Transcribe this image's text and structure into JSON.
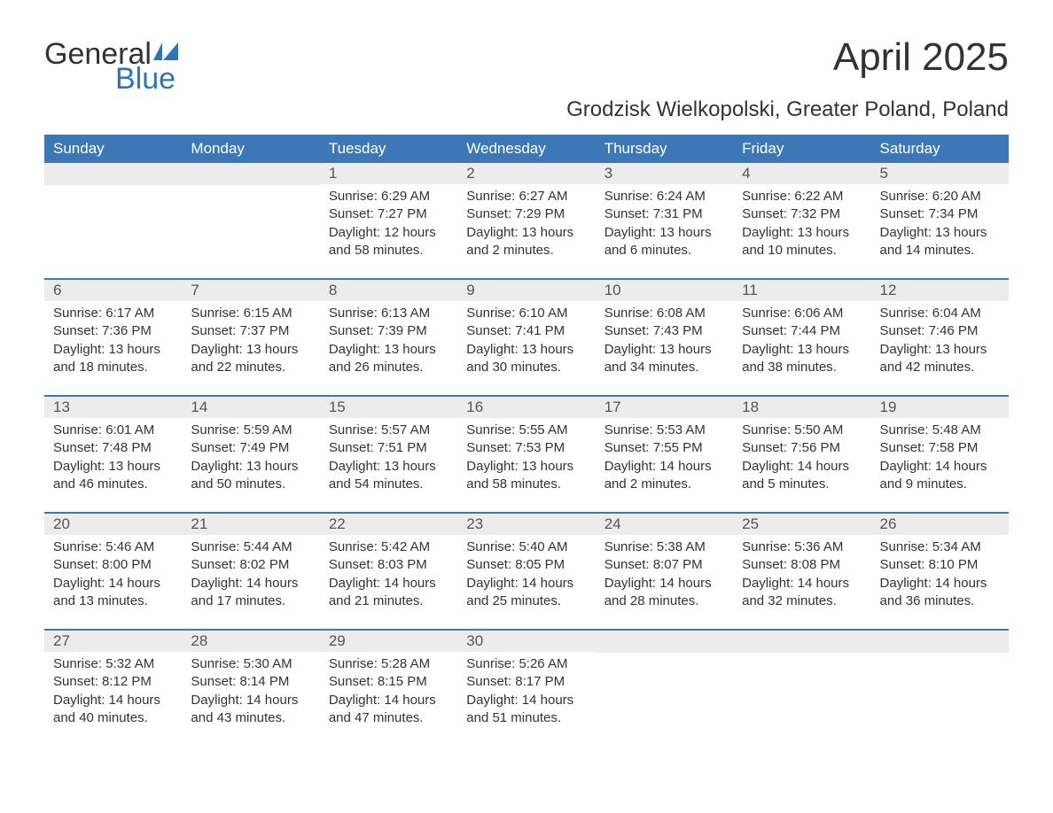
{
  "logo": {
    "line1": "General",
    "line2": "Blue"
  },
  "title": "April 2025",
  "subtitle": "Grodzisk Wielkopolski, Greater Poland, Poland",
  "colors": {
    "header_bg": "#3b78b5",
    "header_text": "#ffffff",
    "daynum_bg": "#ececec",
    "body_text": "#333333",
    "accent": "#2e75b6",
    "page_bg": "#ffffff"
  },
  "layout": {
    "columns": 7,
    "rows": 5,
    "first_day_column_index": 2,
    "days_in_month": 30
  },
  "weekdays": [
    "Sunday",
    "Monday",
    "Tuesday",
    "Wednesday",
    "Thursday",
    "Friday",
    "Saturday"
  ],
  "fontsizes": {
    "title": 44,
    "subtitle": 24,
    "weekday": 17,
    "daynum": 17,
    "body": 15,
    "logo": 34
  },
  "days": [
    {
      "n": "1",
      "sunrise": "Sunrise: 6:29 AM",
      "sunset": "Sunset: 7:27 PM",
      "day1": "Daylight: 12 hours",
      "day2": "and 58 minutes."
    },
    {
      "n": "2",
      "sunrise": "Sunrise: 6:27 AM",
      "sunset": "Sunset: 7:29 PM",
      "day1": "Daylight: 13 hours",
      "day2": "and 2 minutes."
    },
    {
      "n": "3",
      "sunrise": "Sunrise: 6:24 AM",
      "sunset": "Sunset: 7:31 PM",
      "day1": "Daylight: 13 hours",
      "day2": "and 6 minutes."
    },
    {
      "n": "4",
      "sunrise": "Sunrise: 6:22 AM",
      "sunset": "Sunset: 7:32 PM",
      "day1": "Daylight: 13 hours",
      "day2": "and 10 minutes."
    },
    {
      "n": "5",
      "sunrise": "Sunrise: 6:20 AM",
      "sunset": "Sunset: 7:34 PM",
      "day1": "Daylight: 13 hours",
      "day2": "and 14 minutes."
    },
    {
      "n": "6",
      "sunrise": "Sunrise: 6:17 AM",
      "sunset": "Sunset: 7:36 PM",
      "day1": "Daylight: 13 hours",
      "day2": "and 18 minutes."
    },
    {
      "n": "7",
      "sunrise": "Sunrise: 6:15 AM",
      "sunset": "Sunset: 7:37 PM",
      "day1": "Daylight: 13 hours",
      "day2": "and 22 minutes."
    },
    {
      "n": "8",
      "sunrise": "Sunrise: 6:13 AM",
      "sunset": "Sunset: 7:39 PM",
      "day1": "Daylight: 13 hours",
      "day2": "and 26 minutes."
    },
    {
      "n": "9",
      "sunrise": "Sunrise: 6:10 AM",
      "sunset": "Sunset: 7:41 PM",
      "day1": "Daylight: 13 hours",
      "day2": "and 30 minutes."
    },
    {
      "n": "10",
      "sunrise": "Sunrise: 6:08 AM",
      "sunset": "Sunset: 7:43 PM",
      "day1": "Daylight: 13 hours",
      "day2": "and 34 minutes."
    },
    {
      "n": "11",
      "sunrise": "Sunrise: 6:06 AM",
      "sunset": "Sunset: 7:44 PM",
      "day1": "Daylight: 13 hours",
      "day2": "and 38 minutes."
    },
    {
      "n": "12",
      "sunrise": "Sunrise: 6:04 AM",
      "sunset": "Sunset: 7:46 PM",
      "day1": "Daylight: 13 hours",
      "day2": "and 42 minutes."
    },
    {
      "n": "13",
      "sunrise": "Sunrise: 6:01 AM",
      "sunset": "Sunset: 7:48 PM",
      "day1": "Daylight: 13 hours",
      "day2": "and 46 minutes."
    },
    {
      "n": "14",
      "sunrise": "Sunrise: 5:59 AM",
      "sunset": "Sunset: 7:49 PM",
      "day1": "Daylight: 13 hours",
      "day2": "and 50 minutes."
    },
    {
      "n": "15",
      "sunrise": "Sunrise: 5:57 AM",
      "sunset": "Sunset: 7:51 PM",
      "day1": "Daylight: 13 hours",
      "day2": "and 54 minutes."
    },
    {
      "n": "16",
      "sunrise": "Sunrise: 5:55 AM",
      "sunset": "Sunset: 7:53 PM",
      "day1": "Daylight: 13 hours",
      "day2": "and 58 minutes."
    },
    {
      "n": "17",
      "sunrise": "Sunrise: 5:53 AM",
      "sunset": "Sunset: 7:55 PM",
      "day1": "Daylight: 14 hours",
      "day2": "and 2 minutes."
    },
    {
      "n": "18",
      "sunrise": "Sunrise: 5:50 AM",
      "sunset": "Sunset: 7:56 PM",
      "day1": "Daylight: 14 hours",
      "day2": "and 5 minutes."
    },
    {
      "n": "19",
      "sunrise": "Sunrise: 5:48 AM",
      "sunset": "Sunset: 7:58 PM",
      "day1": "Daylight: 14 hours",
      "day2": "and 9 minutes."
    },
    {
      "n": "20",
      "sunrise": "Sunrise: 5:46 AM",
      "sunset": "Sunset: 8:00 PM",
      "day1": "Daylight: 14 hours",
      "day2": "and 13 minutes."
    },
    {
      "n": "21",
      "sunrise": "Sunrise: 5:44 AM",
      "sunset": "Sunset: 8:02 PM",
      "day1": "Daylight: 14 hours",
      "day2": "and 17 minutes."
    },
    {
      "n": "22",
      "sunrise": "Sunrise: 5:42 AM",
      "sunset": "Sunset: 8:03 PM",
      "day1": "Daylight: 14 hours",
      "day2": "and 21 minutes."
    },
    {
      "n": "23",
      "sunrise": "Sunrise: 5:40 AM",
      "sunset": "Sunset: 8:05 PM",
      "day1": "Daylight: 14 hours",
      "day2": "and 25 minutes."
    },
    {
      "n": "24",
      "sunrise": "Sunrise: 5:38 AM",
      "sunset": "Sunset: 8:07 PM",
      "day1": "Daylight: 14 hours",
      "day2": "and 28 minutes."
    },
    {
      "n": "25",
      "sunrise": "Sunrise: 5:36 AM",
      "sunset": "Sunset: 8:08 PM",
      "day1": "Daylight: 14 hours",
      "day2": "and 32 minutes."
    },
    {
      "n": "26",
      "sunrise": "Sunrise: 5:34 AM",
      "sunset": "Sunset: 8:10 PM",
      "day1": "Daylight: 14 hours",
      "day2": "and 36 minutes."
    },
    {
      "n": "27",
      "sunrise": "Sunrise: 5:32 AM",
      "sunset": "Sunset: 8:12 PM",
      "day1": "Daylight: 14 hours",
      "day2": "and 40 minutes."
    },
    {
      "n": "28",
      "sunrise": "Sunrise: 5:30 AM",
      "sunset": "Sunset: 8:14 PM",
      "day1": "Daylight: 14 hours",
      "day2": "and 43 minutes."
    },
    {
      "n": "29",
      "sunrise": "Sunrise: 5:28 AM",
      "sunset": "Sunset: 8:15 PM",
      "day1": "Daylight: 14 hours",
      "day2": "and 47 minutes."
    },
    {
      "n": "30",
      "sunrise": "Sunrise: 5:26 AM",
      "sunset": "Sunset: 8:17 PM",
      "day1": "Daylight: 14 hours",
      "day2": "and 51 minutes."
    }
  ]
}
